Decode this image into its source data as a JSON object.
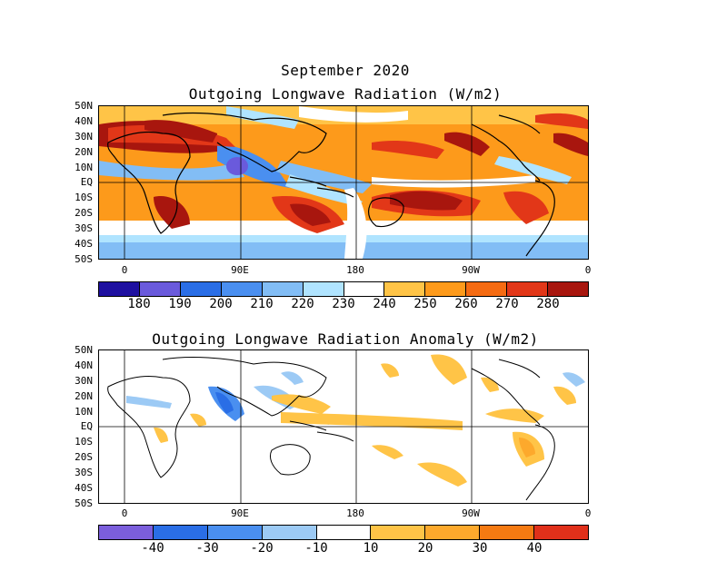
{
  "header": {
    "title": "September 2020"
  },
  "olr_panel": {
    "title": "Outgoing Longwave Radiation (W/m2)",
    "lat_labels": [
      "50N",
      "40N",
      "30N",
      "20N",
      "10N",
      "EQ",
      "10S",
      "20S",
      "30S",
      "40S",
      "50S"
    ],
    "lon_labels": [
      "0",
      "90E",
      "180",
      "90W",
      "0"
    ],
    "colorbar": {
      "colors": [
        "#1e10a0",
        "#6a5adc",
        "#2a6ee6",
        "#4a8ff0",
        "#82bdf5",
        "#b0e4ff",
        "#ffffff",
        "#ffc447",
        "#fd9a1b",
        "#f56b12",
        "#e23718",
        "#a8160e"
      ],
      "labels": [
        "180",
        "190",
        "200",
        "210",
        "220",
        "230",
        "240",
        "250",
        "260",
        "270",
        "280"
      ]
    }
  },
  "anomaly_panel": {
    "title": "Outgoing Longwave Radiation Anomaly (W/m2)",
    "lat_labels": [
      "50N",
      "40N",
      "30N",
      "20N",
      "10N",
      "EQ",
      "10S",
      "20S",
      "30S",
      "40S",
      "50S"
    ],
    "lon_labels": [
      "0",
      "90E",
      "180",
      "90W",
      "0"
    ],
    "colorbar": {
      "colors": [
        "#7b5edc",
        "#2a6ee6",
        "#4a8ff0",
        "#9ccaf5",
        "#ffffff",
        "#ffc447",
        "#fda92c",
        "#f57a12",
        "#e0301a"
      ],
      "labels": [
        "-40",
        "-30",
        "-20",
        "-10",
        "10",
        "20",
        "30",
        "40"
      ]
    }
  }
}
